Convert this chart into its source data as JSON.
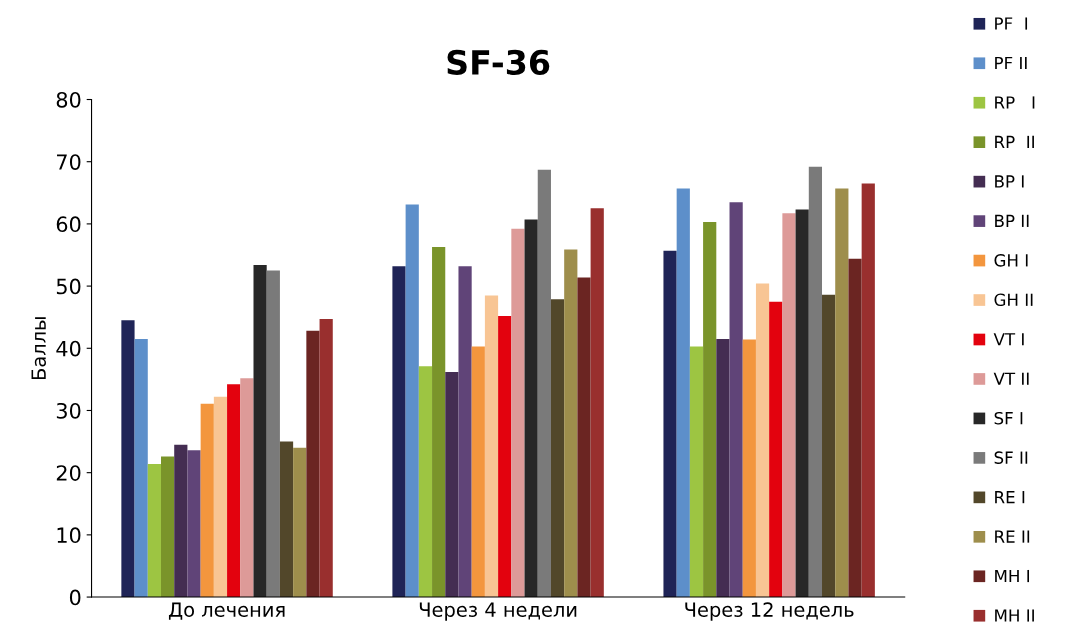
{
  "chart_data": {
    "type": "bar",
    "title": "SF-36",
    "ylabel": "Баллы",
    "categories": [
      "До лечения",
      "Через 4 недели",
      "Через 12 недель"
    ],
    "ylim": [
      0,
      80
    ],
    "yticks": [
      0,
      10,
      20,
      30,
      40,
      50,
      60,
      70,
      80
    ],
    "grid": false,
    "legend": "right",
    "series": [
      {
        "name": "PF  I",
        "color": "#1f2457",
        "values": [
          44.5,
          53.2,
          55.7
        ]
      },
      {
        "name": "PF II",
        "color": "#5d8fca",
        "values": [
          41.5,
          63.1,
          65.7
        ]
      },
      {
        "name": "RP   I",
        "color": "#9dc542",
        "values": [
          21.4,
          37.1,
          40.3
        ]
      },
      {
        "name": "RP  II",
        "color": "#7a942a",
        "values": [
          22.6,
          56.3,
          60.3
        ]
      },
      {
        "name": "BP I",
        "color": "#442d52",
        "values": [
          24.5,
          36.2,
          41.5
        ]
      },
      {
        "name": "BP II",
        "color": "#604478",
        "values": [
          23.6,
          53.2,
          63.5
        ]
      },
      {
        "name": "GH I",
        "color": "#f3963e",
        "values": [
          31.1,
          40.3,
          41.4
        ]
      },
      {
        "name": "GH II",
        "color": "#f8c594",
        "values": [
          32.2,
          48.5,
          50.4
        ]
      },
      {
        "name": "VT I",
        "color": "#e3020e",
        "values": [
          34.2,
          45.2,
          47.5
        ]
      },
      {
        "name": "VT II",
        "color": "#dd9a98",
        "values": [
          35.2,
          59.2,
          61.7
        ]
      },
      {
        "name": "SF I",
        "color": "#272727",
        "values": [
          53.4,
          60.7,
          62.3
        ]
      },
      {
        "name": "SF II",
        "color": "#7a7a7a",
        "values": [
          52.5,
          68.7,
          69.2
        ]
      },
      {
        "name": "RE I",
        "color": "#52472a",
        "values": [
          25.0,
          47.9,
          48.6
        ]
      },
      {
        "name": "RE II",
        "color": "#9e8e4c",
        "values": [
          24.0,
          55.9,
          65.7
        ]
      },
      {
        "name": "MH I",
        "color": "#6b2522",
        "values": [
          42.8,
          51.4,
          54.4
        ]
      },
      {
        "name": "MH II",
        "color": "#992f2e",
        "values": [
          44.7,
          62.5,
          66.5
        ]
      }
    ]
  }
}
